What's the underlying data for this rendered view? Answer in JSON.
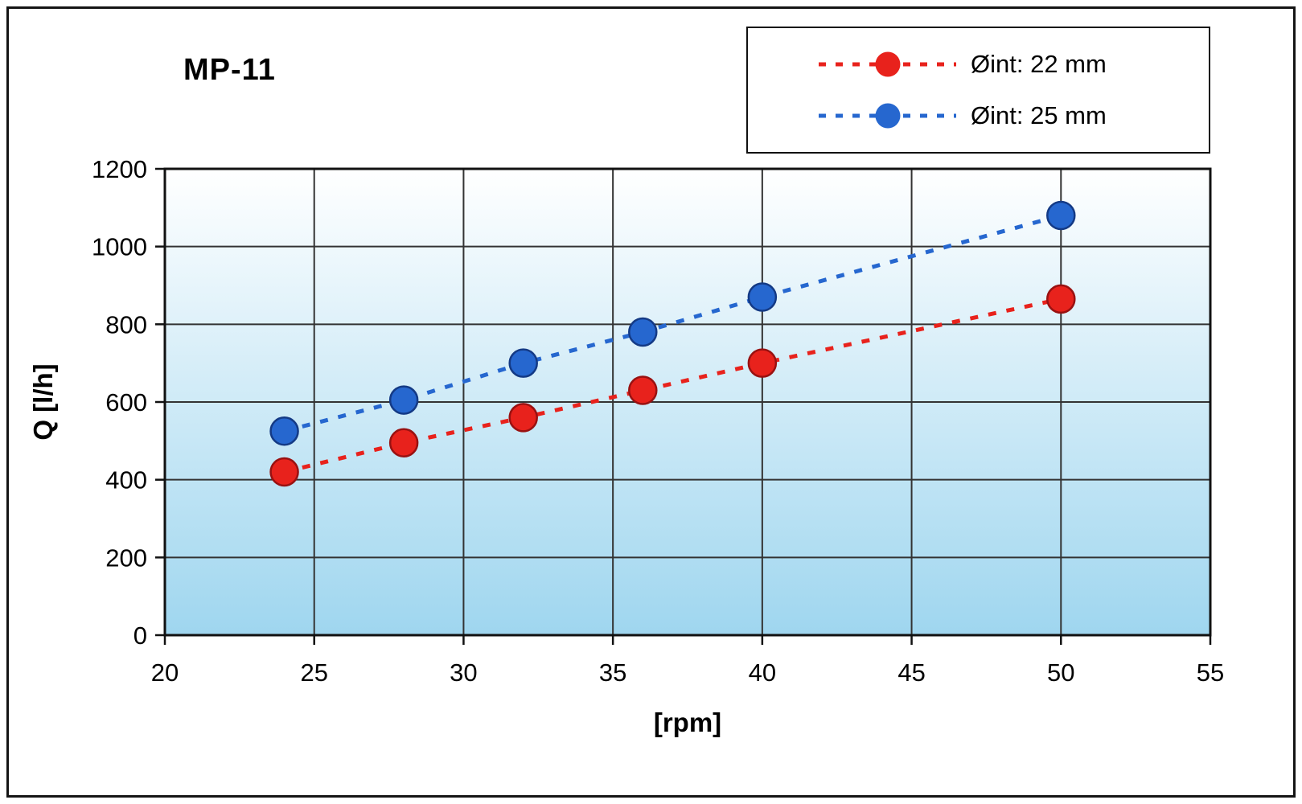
{
  "chart": {
    "title": "MP-11",
    "x_axis_label": "[rpm]",
    "y_axis_label": "Q [l/h]"
  },
  "chart_data": {
    "type": "line",
    "title": "MP-11",
    "xlabel": "[rpm]",
    "ylabel": "Q [l/h]",
    "x": [
      24,
      28,
      32,
      36,
      40,
      50
    ],
    "series": [
      {
        "name": "Øint: 22 mm",
        "color": "#e8221c",
        "marker_edge": "#991111",
        "values": [
          420,
          495,
          560,
          630,
          700,
          865
        ]
      },
      {
        "name": "Øint: 25 mm",
        "color": "#2667cf",
        "marker_edge": "#143a85",
        "values": [
          525,
          605,
          700,
          780,
          870,
          1080
        ]
      }
    ],
    "xlim": [
      20,
      55
    ],
    "ylim": [
      0,
      1200
    ],
    "x_ticks": [
      20,
      25,
      30,
      35,
      40,
      45,
      50,
      55
    ],
    "y_ticks": [
      0,
      200,
      400,
      600,
      800,
      1000,
      1200
    ],
    "grid": true,
    "legend_position": "top-right",
    "line_style": "dashed",
    "marker": "circle",
    "plot_bg_gradient": [
      "#ffffff",
      "#9fd6ef"
    ]
  }
}
